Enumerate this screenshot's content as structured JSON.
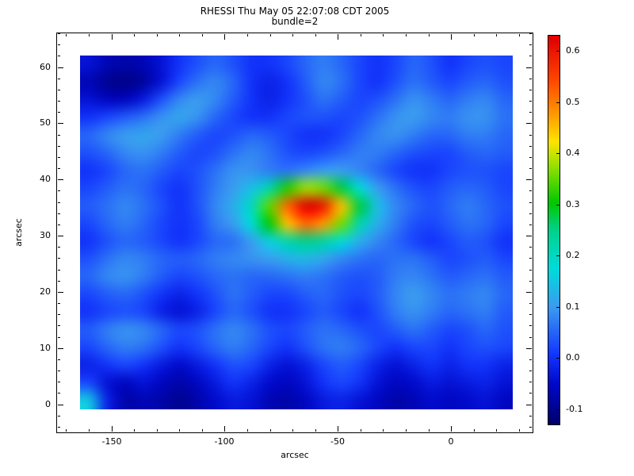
{
  "title": {
    "line1": "RHESSI Thu May 05 22:07:08 CDT 2005",
    "line2": "bundle=2"
  },
  "axes": {
    "xlabel": "arcsec",
    "ylabel": "arcsec",
    "x_axis_range": [
      -174,
      36
    ],
    "y_axis_range": [
      -5,
      66
    ],
    "x_ticks": [
      -150,
      -100,
      -50,
      0
    ],
    "x_tick_labels": [
      "-150",
      "-100",
      "-50",
      "0"
    ],
    "x_minor_step": 10,
    "y_ticks": [
      0,
      10,
      20,
      30,
      40,
      50,
      60
    ],
    "y_tick_labels": [
      "0",
      "10",
      "20",
      "30",
      "40",
      "50",
      "60"
    ],
    "y_minor_step": 2
  },
  "colorbar": {
    "vmin": -0.13,
    "vmax": 0.63,
    "ticks": [
      -0.1,
      0.0,
      0.1,
      0.2,
      0.3,
      0.4,
      0.5,
      0.6
    ],
    "tick_labels": [
      "-0.1",
      "0.0",
      "0.1",
      "0.2",
      "0.3",
      "0.4",
      "0.5",
      "0.6"
    ]
  },
  "chart_data": {
    "type": "heatmap",
    "title": "RHESSI Thu May 05 22:07:08 CDT 2005  bundle=2",
    "xlabel": "arcsec",
    "ylabel": "arcsec",
    "x_range": [
      -164,
      27
    ],
    "y_range": [
      -1,
      62
    ],
    "peak": {
      "x_arcsec": -60,
      "y_arcsec": 35,
      "value": 0.63
    },
    "background_level": 0.02,
    "colormap": "rainbow",
    "colormap_stops": [
      {
        "t": 0.0,
        "c": "#00006e"
      },
      {
        "t": 0.1,
        "c": "#0008c8"
      },
      {
        "t": 0.18,
        "c": "#1438ff"
      },
      {
        "t": 0.3,
        "c": "#3c9bf0"
      },
      {
        "t": 0.4,
        "c": "#00dcdc"
      },
      {
        "t": 0.5,
        "c": "#00d28c"
      },
      {
        "t": 0.57,
        "c": "#00c800"
      },
      {
        "t": 0.66,
        "c": "#8ce000"
      },
      {
        "t": 0.73,
        "c": "#ffe400"
      },
      {
        "t": 0.81,
        "c": "#ff9000"
      },
      {
        "t": 0.89,
        "c": "#ff4600"
      },
      {
        "t": 1.0,
        "c": "#e10000"
      }
    ],
    "grid_note": "rows top-to-bottom (y=62 to y=-1), cols left-to-right (x=-164 to x=27), values in colorbar units",
    "grid": [
      [
        -0.04,
        -0.07,
        -0.08,
        -0.07,
        -0.04,
        0.0,
        0.03,
        0.05,
        0.03,
        0.0,
        0.0,
        0.02,
        0.05,
        0.07,
        0.05,
        0.02,
        0.0,
        0.02,
        0.05,
        0.03,
        0.0,
        0.02,
        0.03,
        0.02
      ],
      [
        -0.07,
        -0.1,
        -0.11,
        -0.09,
        -0.04,
        0.02,
        0.06,
        0.08,
        0.05,
        0.0,
        -0.02,
        0.0,
        0.04,
        0.08,
        0.06,
        0.02,
        0.0,
        0.03,
        0.06,
        0.04,
        0.02,
        0.04,
        0.05,
        0.03
      ],
      [
        -0.04,
        -0.06,
        -0.06,
        -0.03,
        0.03,
        0.08,
        0.1,
        0.08,
        0.04,
        0.0,
        -0.02,
        0.0,
        0.03,
        0.06,
        0.04,
        0.02,
        0.03,
        0.06,
        0.09,
        0.07,
        0.05,
        0.07,
        0.08,
        0.05
      ],
      [
        0.0,
        0.02,
        0.04,
        0.06,
        0.09,
        0.11,
        0.09,
        0.05,
        0.02,
        0.0,
        0.0,
        0.02,
        0.03,
        0.03,
        0.02,
        0.03,
        0.06,
        0.09,
        0.1,
        0.08,
        0.07,
        0.09,
        0.09,
        0.06
      ],
      [
        0.05,
        0.08,
        0.1,
        0.11,
        0.1,
        0.07,
        0.04,
        0.02,
        0.03,
        0.05,
        0.04,
        0.02,
        0.0,
        0.0,
        0.02,
        0.05,
        0.08,
        0.09,
        0.07,
        0.05,
        0.05,
        0.07,
        0.07,
        0.05
      ],
      [
        0.03,
        0.05,
        0.08,
        0.09,
        0.07,
        0.04,
        0.02,
        0.03,
        0.06,
        0.08,
        0.06,
        0.03,
        0.02,
        0.03,
        0.05,
        0.07,
        0.07,
        0.05,
        0.03,
        0.02,
        0.02,
        0.04,
        0.05,
        0.04
      ],
      [
        0.0,
        0.02,
        0.05,
        0.06,
        0.04,
        0.02,
        0.03,
        0.06,
        0.09,
        0.09,
        0.07,
        0.06,
        0.08,
        0.1,
        0.1,
        0.08,
        0.05,
        0.02,
        0.0,
        0.0,
        0.02,
        0.03,
        0.03,
        0.02
      ],
      [
        0.02,
        0.04,
        0.06,
        0.05,
        0.02,
        0.0,
        0.03,
        0.07,
        0.1,
        0.14,
        0.22,
        0.32,
        0.38,
        0.36,
        0.28,
        0.18,
        0.1,
        0.06,
        0.03,
        0.02,
        0.04,
        0.05,
        0.04,
        0.02
      ],
      [
        0.04,
        0.06,
        0.08,
        0.06,
        0.03,
        0.0,
        0.03,
        0.08,
        0.12,
        0.2,
        0.35,
        0.52,
        0.63,
        0.6,
        0.45,
        0.28,
        0.14,
        0.08,
        0.05,
        0.03,
        0.05,
        0.07,
        0.05,
        0.03
      ],
      [
        0.02,
        0.05,
        0.07,
        0.05,
        0.02,
        0.0,
        0.02,
        0.07,
        0.1,
        0.18,
        0.3,
        0.45,
        0.52,
        0.48,
        0.36,
        0.22,
        0.12,
        0.07,
        0.03,
        0.02,
        0.04,
        0.06,
        0.05,
        0.02
      ],
      [
        0.0,
        0.03,
        0.05,
        0.04,
        0.02,
        0.0,
        0.02,
        0.05,
        0.06,
        0.1,
        0.16,
        0.22,
        0.25,
        0.23,
        0.18,
        0.12,
        0.08,
        0.05,
        0.02,
        0.0,
        0.02,
        0.04,
        0.03,
        0.0
      ],
      [
        0.03,
        0.06,
        0.08,
        0.07,
        0.05,
        0.04,
        0.05,
        0.07,
        0.08,
        0.09,
        0.1,
        0.12,
        0.13,
        0.11,
        0.08,
        0.06,
        0.05,
        0.06,
        0.06,
        0.04,
        0.02,
        0.03,
        0.04,
        0.02
      ],
      [
        0.05,
        0.08,
        0.09,
        0.07,
        0.04,
        0.02,
        0.03,
        0.05,
        0.06,
        0.05,
        0.05,
        0.06,
        0.07,
        0.06,
        0.04,
        0.03,
        0.04,
        0.07,
        0.08,
        0.06,
        0.04,
        0.05,
        0.06,
        0.04
      ],
      [
        0.02,
        0.04,
        0.05,
        0.03,
        0.0,
        -0.02,
        0.0,
        0.03,
        0.06,
        0.04,
        0.02,
        0.02,
        0.04,
        0.05,
        0.03,
        0.02,
        0.04,
        0.08,
        0.1,
        0.08,
        0.06,
        0.07,
        0.08,
        0.05
      ],
      [
        0.0,
        0.02,
        0.03,
        0.02,
        -0.02,
        -0.04,
        -0.02,
        0.02,
        0.05,
        0.03,
        0.0,
        0.0,
        0.02,
        0.04,
        0.02,
        0.0,
        0.03,
        0.07,
        0.09,
        0.07,
        0.05,
        0.06,
        0.07,
        0.04
      ],
      [
        0.04,
        0.07,
        0.09,
        0.08,
        0.05,
        0.02,
        0.03,
        0.06,
        0.08,
        0.06,
        0.03,
        0.02,
        0.04,
        0.06,
        0.05,
        0.03,
        0.02,
        0.04,
        0.06,
        0.04,
        0.02,
        0.03,
        0.05,
        0.03
      ],
      [
        0.02,
        0.05,
        0.07,
        0.06,
        0.03,
        0.0,
        0.02,
        0.05,
        0.07,
        0.05,
        0.02,
        0.0,
        0.03,
        0.06,
        0.07,
        0.05,
        0.02,
        0.0,
        0.02,
        0.02,
        0.0,
        0.02,
        0.03,
        0.02
      ],
      [
        -0.02,
        0.0,
        0.02,
        0.0,
        -0.03,
        -0.05,
        -0.03,
        0.0,
        0.03,
        0.02,
        -0.02,
        -0.04,
        -0.02,
        0.02,
        0.04,
        0.02,
        -0.02,
        -0.04,
        -0.02,
        0.0,
        -0.02,
        0.0,
        0.0,
        -0.02
      ],
      [
        0.02,
        -0.04,
        -0.06,
        -0.04,
        -0.06,
        -0.08,
        -0.06,
        -0.03,
        0.0,
        -0.02,
        -0.05,
        -0.06,
        -0.04,
        0.0,
        0.02,
        0.0,
        -0.04,
        -0.06,
        -0.05,
        -0.03,
        -0.04,
        -0.03,
        -0.02,
        -0.04
      ],
      [
        0.15,
        -0.02,
        -0.08,
        -0.07,
        -0.08,
        -0.1,
        -0.08,
        -0.05,
        -0.03,
        -0.04,
        -0.07,
        -0.08,
        -0.06,
        -0.03,
        -0.02,
        -0.04,
        -0.06,
        -0.08,
        -0.07,
        -0.05,
        -0.06,
        -0.05,
        -0.04,
        -0.06
      ]
    ]
  }
}
